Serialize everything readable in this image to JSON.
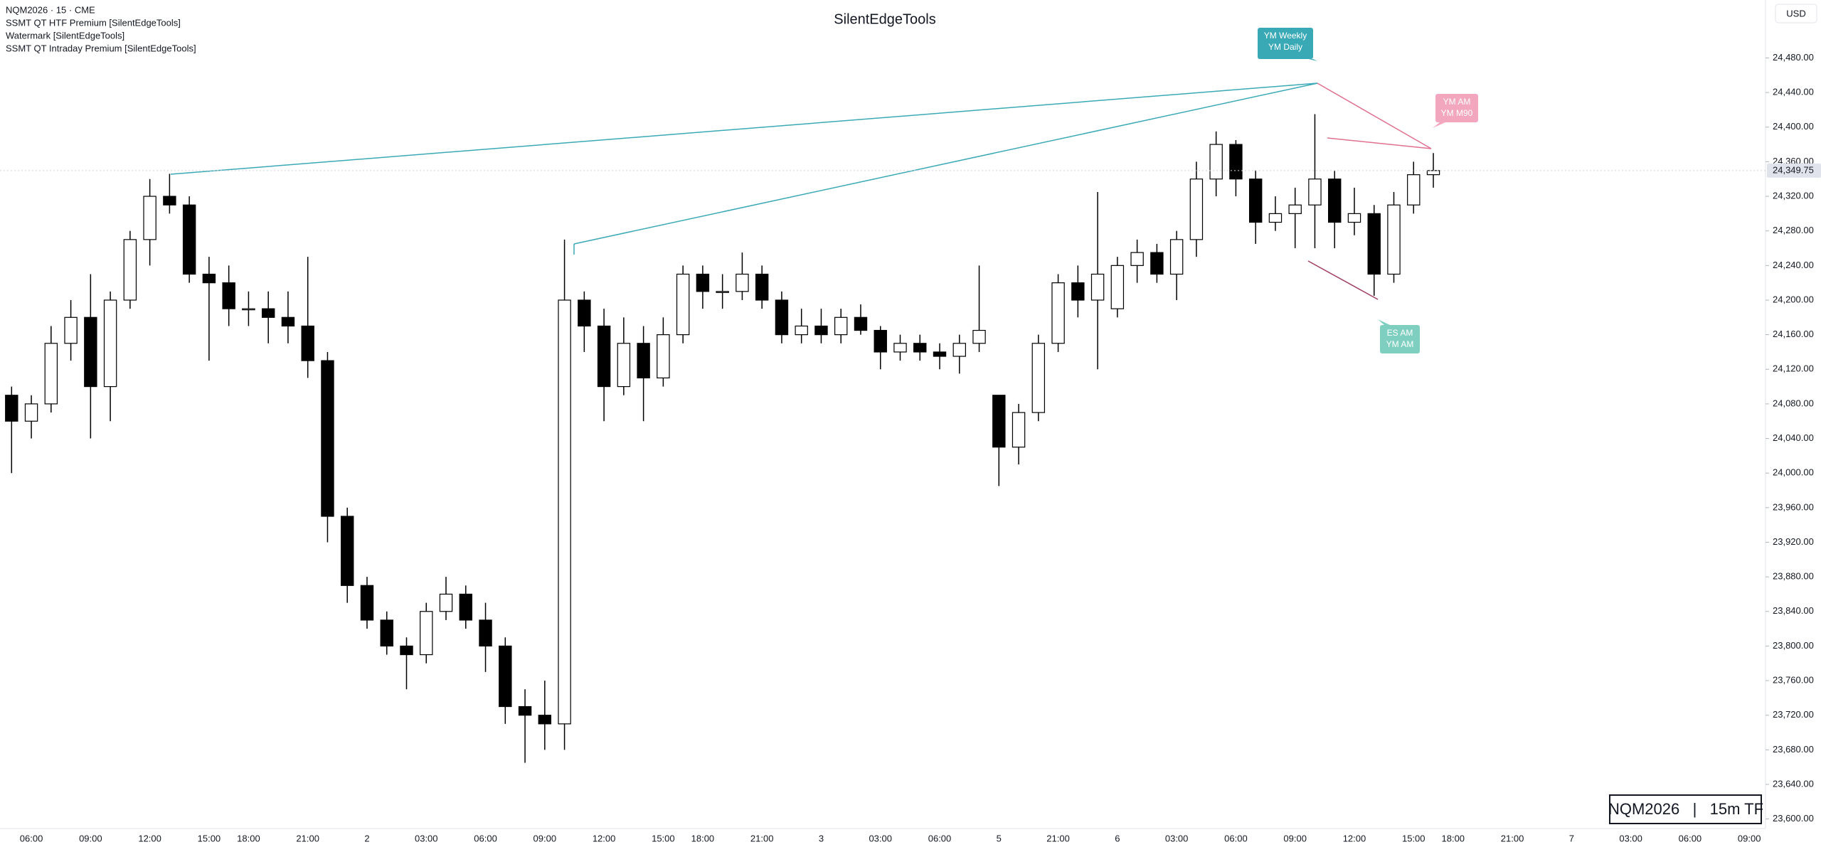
{
  "chart_data": {
    "type": "candlestick",
    "title": "SilentEdgeTools",
    "symbol_info": "NQM2026 · 15 · CME",
    "indicators": [
      "SSMT QT HTF Premium [SilentEdgeTools]",
      "Watermark [SilentEdgeTools]",
      "SSMT QT Intraday Premium [SilentEdgeTools]"
    ],
    "currency": "USD",
    "watermark": "NQM2026   |   15m TF",
    "up_color": "#ffffff",
    "down_color": "#000000",
    "wick_color": "#000000",
    "grid": false,
    "categories": [
      null,
      "06:00",
      null,
      null,
      "09:00",
      null,
      null,
      "12:00",
      null,
      null,
      "15:00",
      null,
      "18:00",
      null,
      null,
      "21:00",
      null,
      null,
      "2",
      null,
      null,
      "03:00",
      null,
      null,
      "06:00",
      null,
      null,
      "09:00",
      null,
      null,
      "12:00",
      null,
      null,
      "15:00",
      null,
      "18:00",
      null,
      null,
      "21:00",
      null,
      null,
      "3",
      null,
      null,
      "03:00",
      null,
      null,
      "06:00",
      null,
      null,
      "5",
      null,
      null,
      "21:00",
      null,
      null,
      "6",
      null,
      null,
      "03:00",
      null,
      null,
      "06:00",
      null,
      null,
      "09:00",
      null,
      null,
      "12:00",
      null,
      null,
      "15:00",
      null,
      "18:00",
      null,
      null,
      "21:00",
      null,
      null,
      "7",
      null,
      null,
      "03:00",
      null,
      null,
      "06:00",
      null,
      null,
      "09:00"
    ],
    "open": [
      24090,
      24060,
      24080,
      24150,
      24180,
      24100,
      24200,
      24270,
      24320,
      24310,
      24230,
      24220,
      24190,
      24190,
      24180,
      24170,
      24130,
      23950,
      23870,
      23830,
      23800,
      23790,
      23840,
      23860,
      23830,
      23800,
      23730,
      23720,
      23710,
      24200,
      24170,
      24100,
      24150,
      24110,
      24160,
      24230,
      24210,
      24210,
      24230,
      24200,
      24160,
      24170,
      24160,
      24180,
      24165,
      24140,
      24150,
      24140,
      24135,
      24150,
      24090,
      24030,
      24070,
      24150,
      24220,
      24200,
      24190,
      24240,
      24255,
      24230,
      24270,
      24340,
      24380,
      24340,
      24290,
      24300,
      24310,
      24340,
      24290,
      24300,
      24230,
      24310,
      24345,
      null,
      null,
      null,
      null,
      null,
      null,
      null,
      null,
      null,
      null,
      null,
      null,
      null,
      null,
      null,
      null
    ],
    "high": [
      24100,
      24090,
      24170,
      24200,
      24230,
      24210,
      24280,
      24340,
      24346,
      24320,
      24250,
      24240,
      24210,
      24210,
      24210,
      24250,
      24140,
      23960,
      23880,
      23840,
      23810,
      23850,
      23880,
      23870,
      23850,
      23810,
      23750,
      23760,
      24270,
      24210,
      24190,
      24180,
      24170,
      24180,
      24240,
      24240,
      24230,
      24255,
      24240,
      24210,
      24190,
      24190,
      24190,
      24195,
      24170,
      24160,
      24160,
      24150,
      24160,
      24240,
      24090,
      24080,
      24160,
      24230,
      24240,
      24325,
      24250,
      24270,
      24265,
      24280,
      24360,
      24395,
      24385,
      24350,
      24320,
      24330,
      24415,
      24350,
      24330,
      24310,
      24325,
      24360,
      24370,
      null,
      null,
      null,
      null,
      null,
      null,
      null,
      null,
      null,
      null,
      null,
      null,
      null,
      null,
      null,
      null
    ],
    "low": [
      24000,
      24040,
      24070,
      24130,
      24040,
      24060,
      24190,
      24240,
      24300,
      24220,
      24130,
      24170,
      24170,
      24150,
      24150,
      24110,
      23920,
      23850,
      23820,
      23790,
      23750,
      23780,
      23830,
      23820,
      23770,
      23710,
      23665,
      23680,
      23680,
      24140,
      24060,
      24090,
      24060,
      24100,
      24150,
      24190,
      24190,
      24200,
      24190,
      24150,
      24150,
      24150,
      24150,
      24160,
      24120,
      24130,
      24130,
      24120,
      24115,
      24140,
      23985,
      24010,
      24060,
      24140,
      24180,
      24120,
      24180,
      24220,
      24220,
      24200,
      24250,
      24320,
      24320,
      24265,
      24280,
      24260,
      24260,
      24260,
      24275,
      24205,
      24220,
      24300,
      24330,
      null,
      null,
      null,
      null,
      null,
      null,
      null,
      null,
      null,
      null,
      null,
      null,
      null,
      null,
      null,
      null
    ],
    "close": [
      24060,
      24080,
      24150,
      24180,
      24100,
      24200,
      24270,
      24320,
      24310,
      24230,
      24220,
      24190,
      24190,
      24180,
      24170,
      24130,
      23950,
      23870,
      23830,
      23800,
      23790,
      23840,
      23860,
      23830,
      23800,
      23730,
      23720,
      23710,
      24200,
      24170,
      24100,
      24150,
      24110,
      24160,
      24230,
      24210,
      24210,
      24230,
      24200,
      24160,
      24170,
      24160,
      24180,
      24165,
      24140,
      24150,
      24140,
      24135,
      24150,
      24165,
      24030,
      24070,
      24150,
      24220,
      24200,
      24230,
      24240,
      24255,
      24230,
      24270,
      24340,
      24380,
      24340,
      24290,
      24300,
      24310,
      24340,
      24290,
      24300,
      24230,
      24310,
      24345,
      24349.75,
      null,
      null,
      null,
      null,
      null,
      null,
      null,
      null,
      null,
      null,
      null,
      null,
      null,
      null,
      null,
      null
    ],
    "last_price": {
      "value": 24349.75,
      "label": "24,349.75"
    },
    "ylim": [
      23589,
      24547
    ],
    "yticks": [
      {
        "value": 23600,
        "label": "23,600.00"
      },
      {
        "value": 23640,
        "label": "23,640.00"
      },
      {
        "value": 23680,
        "label": "23,680.00"
      },
      {
        "value": 23720,
        "label": "23,720.00"
      },
      {
        "value": 23760,
        "label": "23,760.00"
      },
      {
        "value": 23800,
        "label": "23,800.00"
      },
      {
        "value": 23840,
        "label": "23,840.00"
      },
      {
        "value": 23880,
        "label": "23,880.00"
      },
      {
        "value": 23920,
        "label": "23,920.00"
      },
      {
        "value": 23960,
        "label": "23,960.00"
      },
      {
        "value": 24000,
        "label": "24,000.00"
      },
      {
        "value": 24040,
        "label": "24,040.00"
      },
      {
        "value": 24080,
        "label": "24,080.00"
      },
      {
        "value": 24120,
        "label": "24,120.00"
      },
      {
        "value": 24160,
        "label": "24,160.00"
      },
      {
        "value": 24200,
        "label": "24,200.00"
      },
      {
        "value": 24240,
        "label": "24,240.00"
      },
      {
        "value": 24280,
        "label": "24,280.00"
      },
      {
        "value": 24320,
        "label": "24,320.00"
      },
      {
        "value": 24360,
        "label": "24,360.00"
      },
      {
        "value": 24400,
        "label": "24,400.00"
      },
      {
        "value": 24440,
        "label": "24,440.00"
      },
      {
        "value": 24480,
        "label": "24,480.00"
      }
    ],
    "annotations": [
      {
        "text": [
          "YM Weekly",
          "YM Daily"
        ],
        "color": "#3aa9b6"
      },
      {
        "text": [
          "YM AM",
          "YM M90"
        ],
        "color": "#f2a7bf"
      },
      {
        "text": [
          "ES AM",
          "YM AM"
        ],
        "color": "#7fcfc0"
      }
    ]
  }
}
